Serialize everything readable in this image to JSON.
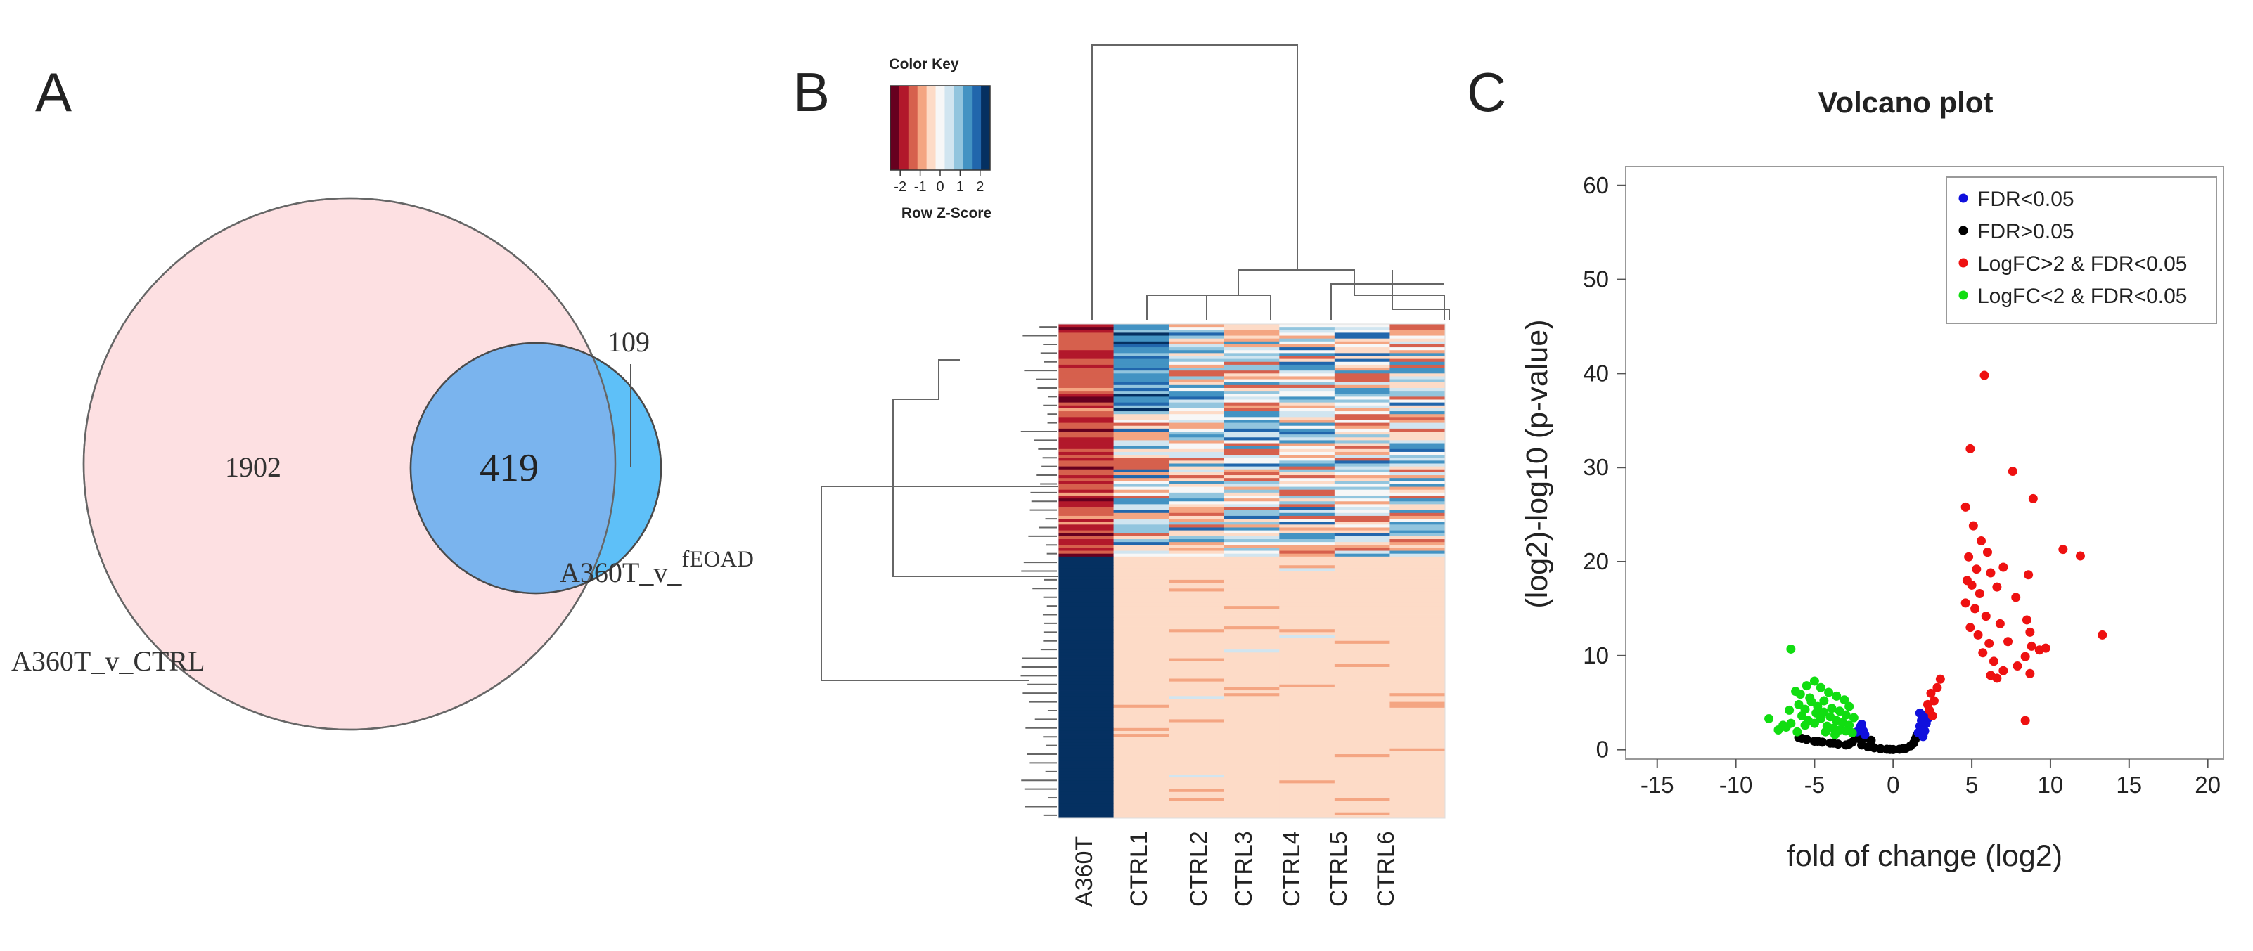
{
  "panels": {
    "a": {
      "letter": "A"
    },
    "b": {
      "letter": "B"
    },
    "c": {
      "letter": "C"
    }
  },
  "chart_data": [
    {
      "type": "venn",
      "sets": [
        {
          "label": "A360T_v_CTRL",
          "color": "#fde0e2"
        },
        {
          "label_main": "A360T_v_",
          "label_sup": "fEOAD",
          "color": "#5ec0f8"
        }
      ],
      "regions": {
        "only_set1": "1902",
        "intersection": "419",
        "only_set2": "109"
      },
      "intersection_color": "#7ab4ee"
    },
    {
      "type": "heatmap",
      "color_key": {
        "title": "Color Key",
        "xlabel": "Row Z-Score",
        "ticks": [
          "-2",
          "-1",
          "0",
          "1",
          "2"
        ],
        "range": [
          -2.5,
          2.5
        ],
        "colors": [
          "#67001f",
          "#b2182b",
          "#d6604d",
          "#f4a582",
          "#fddbc7",
          "#f7f7f7",
          "#d1e5f0",
          "#92c5de",
          "#4393c3",
          "#2166ac",
          "#053061"
        ]
      },
      "columns": [
        "A360T",
        "CTRL1",
        "CTRL2",
        "CTRL3",
        "CTRL4",
        "CTRL5",
        "CTRL6"
      ],
      "row_count": 170,
      "upper_block_rows": 80,
      "values_note_free": true
    },
    {
      "type": "scatter",
      "title": "Volcano plot",
      "xlabel": "fold of change (log2)",
      "ylabel": "(log2)-log10 (p-value)",
      "xlim": [
        -17,
        21
      ],
      "ylim": [
        -1,
        62
      ],
      "xticks": [
        -15,
        -10,
        -5,
        0,
        5,
        10,
        15,
        20
      ],
      "yticks": [
        0,
        10,
        20,
        30,
        40,
        50,
        60
      ],
      "legend_position": "top-right",
      "series": [
        {
          "name": "FDR<0.05",
          "color": "#1010dd",
          "points": [
            [
              1.6,
              1.8
            ],
            [
              1.7,
              2.5
            ],
            [
              1.8,
              3.1
            ],
            [
              1.9,
              2.2
            ],
            [
              2.0,
              3.6
            ],
            [
              2.1,
              2.8
            ],
            [
              1.9,
              1.4
            ],
            [
              2.2,
              3.3
            ],
            [
              1.7,
              3.9
            ],
            [
              2.0,
              2.0
            ],
            [
              -1.9,
              2.0
            ],
            [
              -2.1,
              2.4
            ],
            [
              -1.8,
              1.6
            ],
            [
              -2.3,
              1.9
            ],
            [
              -2.0,
              2.7
            ]
          ]
        },
        {
          "name": "FDR>0.05",
          "color": "#000000",
          "points": [
            [
              -5.5,
              1.1
            ],
            [
              -5.0,
              0.9
            ],
            [
              -4.5,
              0.8
            ],
            [
              -4.0,
              0.7
            ],
            [
              -3.5,
              0.6
            ],
            [
              -3.0,
              0.5
            ],
            [
              -2.6,
              0.8
            ],
            [
              -2.4,
              1.4
            ],
            [
              -2.2,
              1.2
            ],
            [
              -2.0,
              0.5
            ],
            [
              -1.6,
              0.3
            ],
            [
              -1.2,
              0.2
            ],
            [
              -0.8,
              0.1
            ],
            [
              -0.4,
              0.05
            ],
            [
              0,
              0.02
            ],
            [
              0.4,
              0.05
            ],
            [
              0.8,
              0.15
            ],
            [
              1.1,
              0.4
            ],
            [
              1.3,
              0.7
            ],
            [
              1.4,
              1.1
            ],
            [
              1.5,
              1.5
            ],
            [
              -1.4,
              1.0
            ],
            [
              -1.8,
              1.3
            ],
            [
              -6.0,
              1.3
            ],
            [
              -5.8,
              1.2
            ],
            [
              -4.8,
              0.9
            ],
            [
              -3.8,
              0.7
            ],
            [
              -2.8,
              0.6
            ],
            [
              -0.2,
              0.03
            ],
            [
              0.6,
              0.1
            ]
          ]
        },
        {
          "name": "LogFC>2 & FDR<0.05",
          "color": "#ee1111",
          "points": [
            [
              5.8,
              39.8
            ],
            [
              4.9,
              32.0
            ],
            [
              7.6,
              29.6
            ],
            [
              8.9,
              26.7
            ],
            [
              4.6,
              25.8
            ],
            [
              5.1,
              23.8
            ],
            [
              5.6,
              22.2
            ],
            [
              6.0,
              21.0
            ],
            [
              4.8,
              20.5
            ],
            [
              5.3,
              19.2
            ],
            [
              10.8,
              21.3
            ],
            [
              11.9,
              20.6
            ],
            [
              6.2,
              18.8
            ],
            [
              7.0,
              19.4
            ],
            [
              8.6,
              18.6
            ],
            [
              4.7,
              18.0
            ],
            [
              5.0,
              17.5
            ],
            [
              5.5,
              16.6
            ],
            [
              6.6,
              17.3
            ],
            [
              7.8,
              16.2
            ],
            [
              4.6,
              15.6
            ],
            [
              5.2,
              15.0
            ],
            [
              5.9,
              14.2
            ],
            [
              6.8,
              13.4
            ],
            [
              8.5,
              13.8
            ],
            [
              4.9,
              13.0
            ],
            [
              5.4,
              12.2
            ],
            [
              6.1,
              11.3
            ],
            [
              7.3,
              11.5
            ],
            [
              8.8,
              11.0
            ],
            [
              9.3,
              10.6
            ],
            [
              9.7,
              10.8
            ],
            [
              13.3,
              12.2
            ],
            [
              5.7,
              10.3
            ],
            [
              6.4,
              9.4
            ],
            [
              7.0,
              8.4
            ],
            [
              7.9,
              8.9
            ],
            [
              8.4,
              9.9
            ],
            [
              8.7,
              8.1
            ],
            [
              6.2,
              7.9
            ],
            [
              6.6,
              7.6
            ],
            [
              8.4,
              3.1
            ],
            [
              8.7,
              12.5
            ],
            [
              2.3,
              4.2
            ],
            [
              2.6,
              5.2
            ],
            [
              2.4,
              6.0
            ],
            [
              2.8,
              6.6
            ],
            [
              3.0,
              7.5
            ],
            [
              2.5,
              3.6
            ],
            [
              2.2,
              4.8
            ]
          ]
        },
        {
          "name": "LogFC<2 & FDR<0.05",
          "color": "#11dd11",
          "points": [
            [
              -6.5,
              10.7
            ],
            [
              -7.9,
              3.3
            ],
            [
              -6.8,
              2.4
            ],
            [
              -7.3,
              2.1
            ],
            [
              -6.1,
              1.9
            ],
            [
              -5.9,
              5.9
            ],
            [
              -5.5,
              6.8
            ],
            [
              -5.0,
              7.3
            ],
            [
              -4.6,
              6.6
            ],
            [
              -4.1,
              6.1
            ],
            [
              -3.6,
              5.7
            ],
            [
              -3.1,
              5.3
            ],
            [
              -2.8,
              4.6
            ],
            [
              -6.0,
              4.8
            ],
            [
              -5.6,
              4.3
            ],
            [
              -5.2,
              5.1
            ],
            [
              -4.8,
              4.6
            ],
            [
              -4.4,
              4.0
            ],
            [
              -4.0,
              3.5
            ],
            [
              -3.6,
              3.1
            ],
            [
              -3.2,
              2.9
            ],
            [
              -2.8,
              2.6
            ],
            [
              -2.5,
              3.4
            ],
            [
              -5.8,
              3.6
            ],
            [
              -5.4,
              3.1
            ],
            [
              -5.0,
              2.8
            ],
            [
              -4.6,
              3.3
            ],
            [
              -4.2,
              2.5
            ],
            [
              -3.8,
              2.3
            ],
            [
              -3.4,
              2.1
            ],
            [
              -3.0,
              2.0
            ],
            [
              -2.6,
              1.8
            ],
            [
              -6.2,
              6.2
            ],
            [
              -5.3,
              5.5
            ],
            [
              -4.4,
              5.2
            ],
            [
              -3.9,
              4.4
            ],
            [
              -3.4,
              4.1
            ],
            [
              -3.0,
              3.7
            ],
            [
              -4.9,
              3.9
            ],
            [
              -5.6,
              2.6
            ],
            [
              -4.3,
              1.9
            ],
            [
              -3.7,
              1.6
            ],
            [
              -6.5,
              2.8
            ],
            [
              -7.0,
              2.6
            ],
            [
              -6.6,
              4.2
            ]
          ]
        }
      ]
    }
  ]
}
